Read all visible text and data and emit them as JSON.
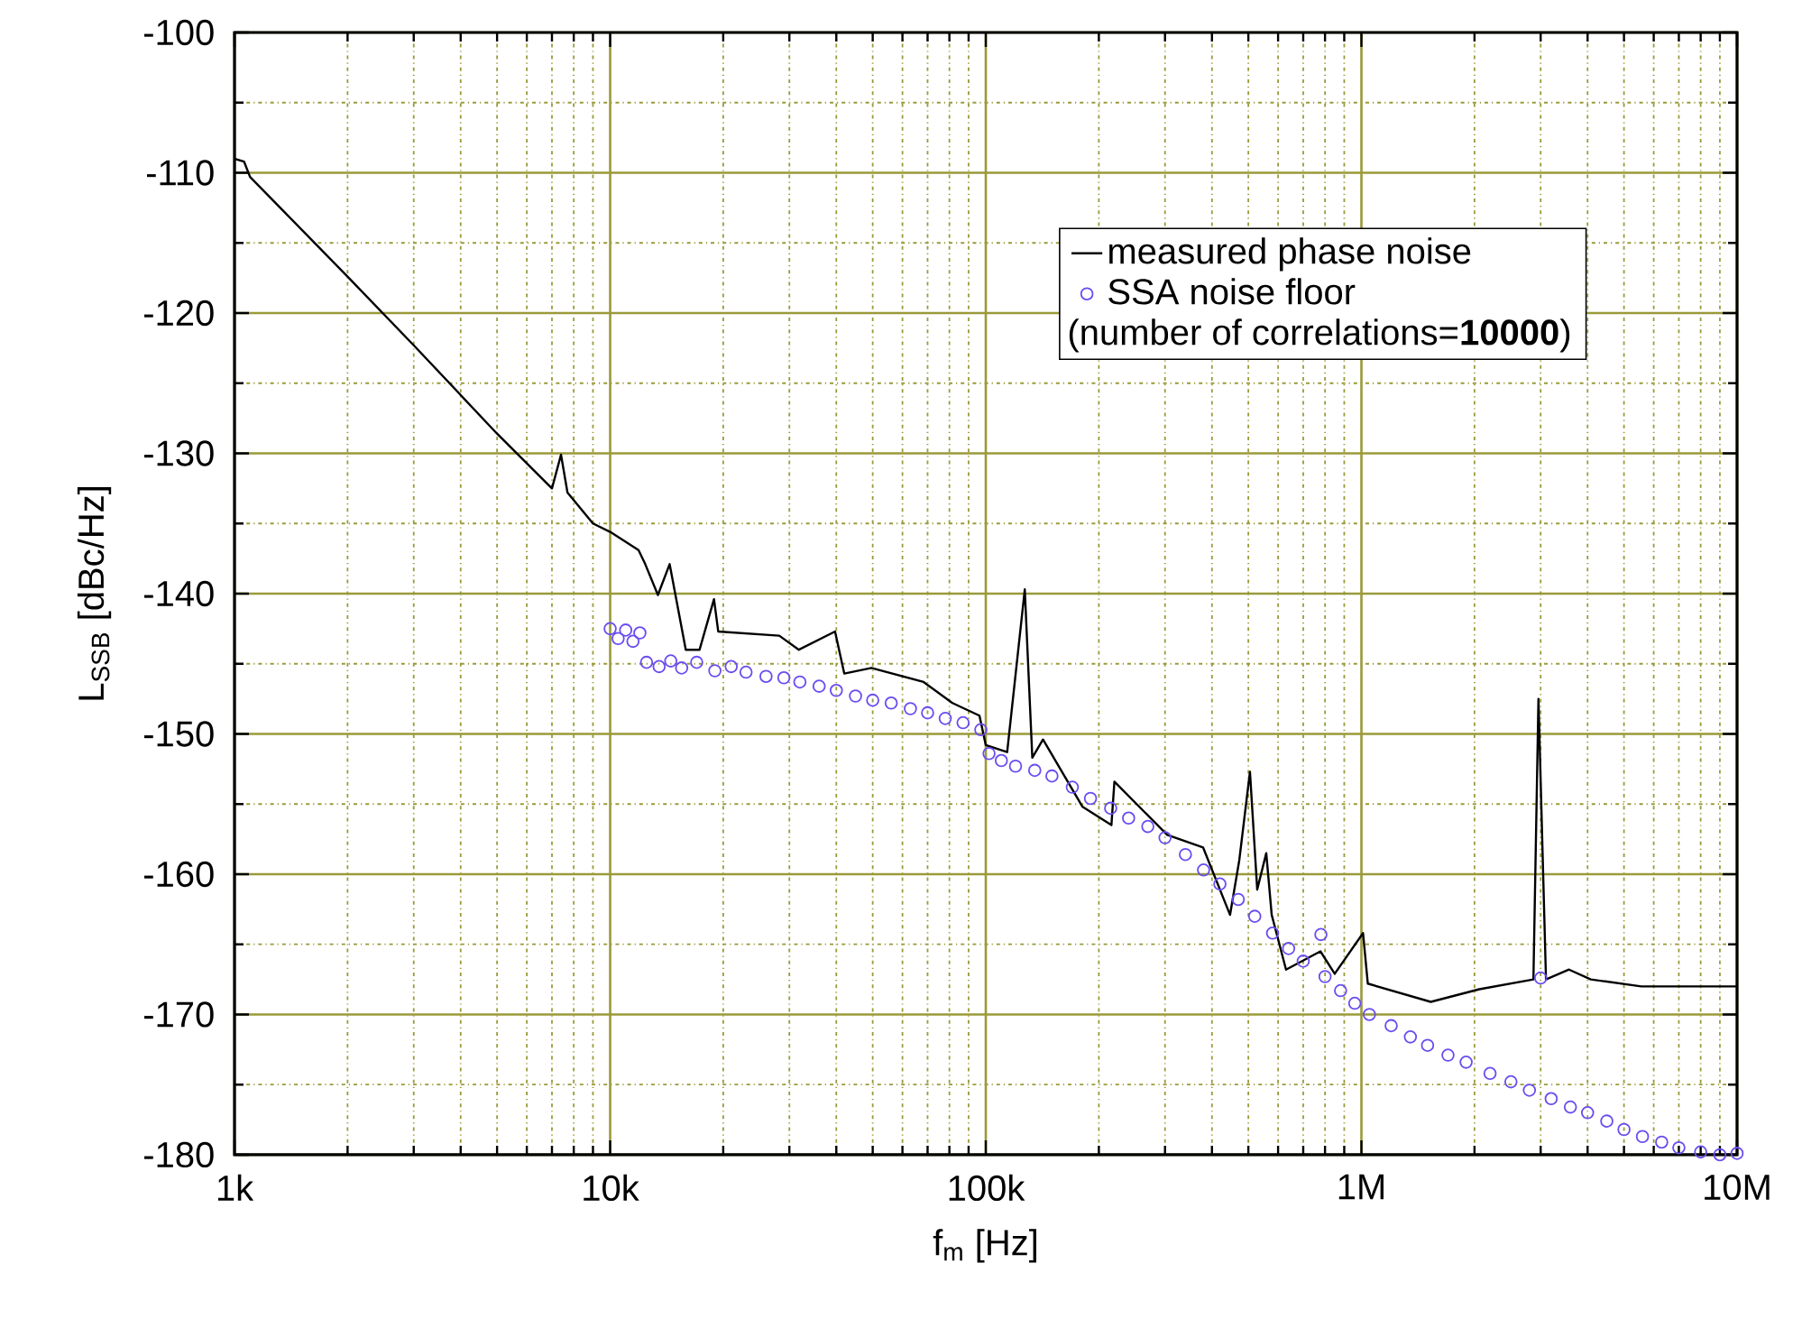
{
  "chart_data": {
    "type": "line",
    "xlabel": "f$_{m}$ [Hz]",
    "ylabel": "L$_{SSB}$ [dBc/Hz]",
    "log": "x",
    "xlim": [
      1000,
      10000000
    ],
    "ylim": [
      -180,
      -100
    ],
    "xticks": [
      {
        "value": 1000,
        "label": "1k"
      },
      {
        "value": 10000,
        "label": "10k"
      },
      {
        "value": 100000,
        "label": "100k"
      },
      {
        "value": 1000000,
        "label": "1M"
      },
      {
        "value": 10000000,
        "label": "10M"
      },
      {
        "value": 2000,
        "label": null
      },
      {
        "value": 3000,
        "label": null
      },
      {
        "value": 4000,
        "label": null
      },
      {
        "value": 5000,
        "label": null
      },
      {
        "value": 6000,
        "label": null
      },
      {
        "value": 7000,
        "label": null
      },
      {
        "value": 8000,
        "label": null
      },
      {
        "value": 9000,
        "label": null
      },
      {
        "value": 20000,
        "label": null
      },
      {
        "value": 30000,
        "label": null
      },
      {
        "value": 40000,
        "label": null
      },
      {
        "value": 50000,
        "label": null
      },
      {
        "value": 60000,
        "label": null
      },
      {
        "value": 70000,
        "label": null
      },
      {
        "value": 80000,
        "label": null
      },
      {
        "value": 90000,
        "label": null
      },
      {
        "value": 200000,
        "label": null
      },
      {
        "value": 300000,
        "label": null
      },
      {
        "value": 400000,
        "label": null
      },
      {
        "value": 500000,
        "label": null
      },
      {
        "value": 600000,
        "label": null
      },
      {
        "value": 700000,
        "label": null
      },
      {
        "value": 800000,
        "label": null
      },
      {
        "value": 900000,
        "label": null
      },
      {
        "value": 2000000,
        "label": null
      },
      {
        "value": 3000000,
        "label": null
      },
      {
        "value": 4000000,
        "label": null
      },
      {
        "value": 5000000,
        "label": null
      },
      {
        "value": 6000000,
        "label": null
      },
      {
        "value": 7000000,
        "label": null
      },
      {
        "value": 8000000,
        "label": null
      },
      {
        "value": 9000000,
        "label": null
      }
    ],
    "yticks": [
      -180,
      {
        "value": -175,
        "label": null
      },
      -170,
      {
        "value": -165,
        "label": null
      },
      -160,
      {
        "value": -155,
        "label": null
      },
      -150,
      {
        "value": -145,
        "label": null
      },
      -140,
      {
        "value": -135,
        "label": null
      },
      -130,
      {
        "value": -125,
        "label": null
      },
      -120,
      {
        "value": -115,
        "label": null
      },
      -110,
      {
        "value": -105,
        "label": null
      },
      -100
    ],
    "grid": true,
    "legend": "top right",
    "annotations": [
      "(number of correlations=**10000**)"
    ],
    "series": [
      {
        "name": "measured phase noise",
        "color": "#000000",
        "line_style": "solid",
        "marker": "none",
        "x": [
          1000,
          1060,
          1100,
          2000,
          3000,
          5000,
          7000,
          7400,
          7700,
          9000,
          10000,
          11900,
          12400,
          13400,
          14400,
          15900,
          17300,
          18900,
          19400,
          28200,
          31800,
          39700,
          42000,
          49600,
          68300,
          81500,
          96200,
          100000,
          114000,
          127000,
          133000,
          142000,
          181000,
          216000,
          220000,
          304000,
          379000,
          447000,
          473000,
          505000,
          528000,
          558000,
          577000,
          630000,
          778000,
          849000,
          1010000,
          1040000,
          1530000,
          2060000,
          2870000,
          2960000,
          3100000,
          3570000,
          4080000,
          5560000,
          10000000
        ],
        "values": [
          -109.0,
          -109.2,
          -110.3,
          -117.4,
          -122.3,
          -128.6,
          -132.5,
          -130.1,
          -132.8,
          -135.0,
          -135.6,
          -136.9,
          -137.9,
          -140.1,
          -137.9,
          -144.0,
          -144.0,
          -140.4,
          -142.7,
          -143.0,
          -144.0,
          -142.7,
          -145.7,
          -145.3,
          -146.3,
          -147.8,
          -148.7,
          -150.8,
          -151.3,
          -139.7,
          -151.7,
          -150.4,
          -155.2,
          -156.5,
          -153.4,
          -157.2,
          -158.1,
          -162.9,
          -159.0,
          -152.7,
          -161.1,
          -158.5,
          -162.9,
          -166.8,
          -165.5,
          -167.1,
          -164.2,
          -167.8,
          -169.1,
          -168.2,
          -167.5,
          -147.5,
          -167.5,
          -166.8,
          -167.5,
          -168.0,
          -168.0
        ]
      },
      {
        "name": "SSA noise floor",
        "type": "scatter",
        "color": "#6a4cf0",
        "marker": "circle",
        "x": [
          10000,
          10500,
          11000,
          11500,
          12000,
          12500,
          13500,
          14500,
          15500,
          17000,
          19000,
          21000,
          23000,
          26000,
          29000,
          32000,
          36000,
          40000,
          45000,
          50000,
          56000,
          63000,
          70000,
          78000,
          87000,
          97000,
          102000,
          110000,
          120000,
          135000,
          150000,
          170000,
          190000,
          215000,
          240000,
          270000,
          300000,
          340000,
          380000,
          420000,
          470000,
          520000,
          580000,
          640000,
          700000,
          780000,
          800000,
          880000,
          960000,
          1050000,
          1200000,
          1350000,
          1500000,
          1700000,
          1900000,
          2200000,
          2500000,
          2800000,
          3000000,
          3200000,
          3600000,
          4000000,
          4500000,
          5000000,
          5600000,
          6300000,
          7000000,
          8000000,
          9000000,
          10000000
        ],
        "values": [
          -142.5,
          -143.2,
          -142.6,
          -143.4,
          -142.8,
          -144.9,
          -145.2,
          -144.8,
          -145.3,
          -144.9,
          -145.5,
          -145.2,
          -145.6,
          -145.9,
          -146.0,
          -146.3,
          -146.6,
          -146.9,
          -147.3,
          -147.6,
          -147.8,
          -148.2,
          -148.5,
          -148.9,
          -149.2,
          -149.7,
          -151.4,
          -151.9,
          -152.3,
          -152.6,
          -153.0,
          -153.8,
          -154.6,
          -155.3,
          -156.0,
          -156.6,
          -157.4,
          -158.6,
          -159.7,
          -160.7,
          -161.8,
          -163.0,
          -164.2,
          -165.3,
          -166.2,
          -164.3,
          -167.3,
          -168.3,
          -169.2,
          -170.0,
          -170.8,
          -171.6,
          -172.2,
          -172.9,
          -173.4,
          -174.2,
          -174.8,
          -175.4,
          -167.4,
          -176.0,
          -176.6,
          -177.0,
          -177.6,
          -178.2,
          -178.7,
          -179.1,
          -179.5,
          -179.8,
          -180.0,
          -179.9
        ]
      }
    ]
  }
}
